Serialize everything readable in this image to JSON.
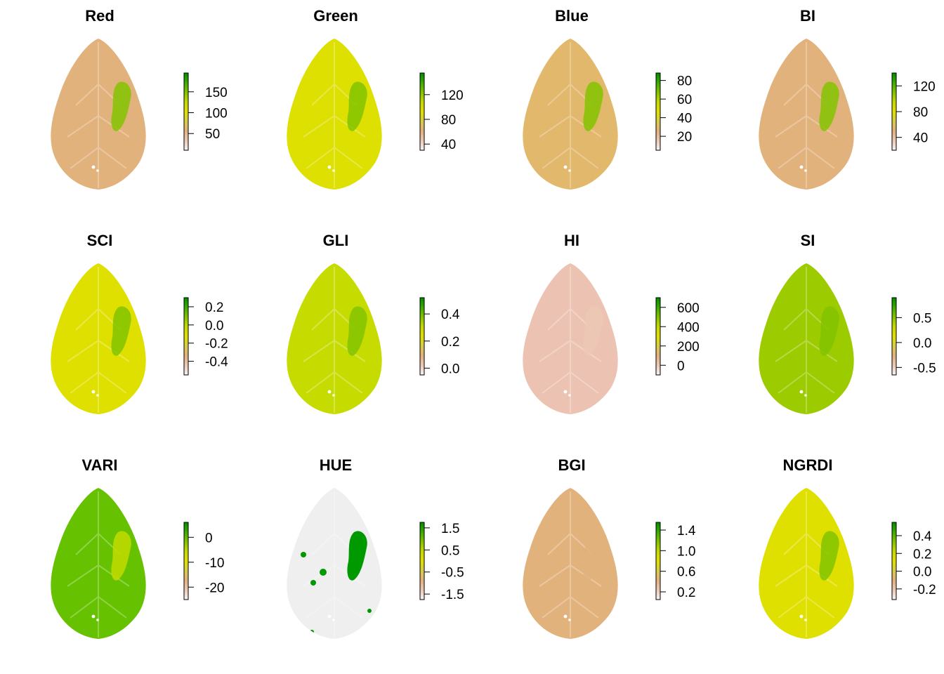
{
  "palette": [
    "#f4f4f4",
    "#ecc8b4",
    "#e2b27c",
    "#d9cc4a",
    "#dfe000",
    "#c2da00",
    "#83c300",
    "#3aab00",
    "#008a00"
  ],
  "chart_data": [
    {
      "type": "heatmap",
      "title": "Red",
      "base": "#e2b27c",
      "patch": [
        0.78,
        0.62,
        0.5
      ],
      "accent": 0.75,
      "ticks": [
        {
          "value": 150,
          "label": "150"
        },
        {
          "value": 100,
          "label": "100"
        },
        {
          "value": 50,
          "label": "50"
        }
      ],
      "range": [
        10,
        195
      ]
    },
    {
      "type": "heatmap",
      "title": "Green",
      "base": "#dde000",
      "patch": [
        0.75,
        0.45,
        0.3
      ],
      "accent": 0.8,
      "ticks": [
        {
          "value": 120,
          "label": "120"
        },
        {
          "value": 80,
          "label": "80"
        },
        {
          "value": 40,
          "label": "40"
        }
      ],
      "range": [
        30,
        155
      ]
    },
    {
      "type": "heatmap",
      "title": "Blue",
      "base": "#e2b86c",
      "patch": [
        0.45,
        0.35,
        0.2
      ],
      "accent": 0.7,
      "ticks": [
        {
          "value": 80,
          "label": "80"
        },
        {
          "value": 60,
          "label": "60"
        },
        {
          "value": 40,
          "label": "40"
        },
        {
          "value": 20,
          "label": "20"
        }
      ],
      "range": [
        5,
        88
      ]
    },
    {
      "type": "heatmap",
      "title": "BI",
      "base": "#e2b27c",
      "patch": [
        0.78,
        0.62,
        0.5
      ],
      "accent": 0.75,
      "ticks": [
        {
          "value": 120,
          "label": "120"
        },
        {
          "value": 80,
          "label": "80"
        },
        {
          "value": 40,
          "label": "40"
        }
      ],
      "range": [
        20,
        140
      ]
    },
    {
      "type": "heatmap",
      "title": "SCI",
      "base": "#dfe000",
      "patch": [
        0.82,
        0.62,
        0.45
      ],
      "accent": 0.8,
      "ticks": [
        {
          "value": 0.2,
          "label": "0.2"
        },
        {
          "value": 0.0,
          "label": "0.0"
        },
        {
          "value": -0.2,
          "label": "-0.2"
        },
        {
          "value": -0.4,
          "label": "-0.4"
        }
      ],
      "range": [
        -0.55,
        0.3
      ]
    },
    {
      "type": "heatmap",
      "title": "GLI",
      "base": "#c6dc00",
      "patch": [
        0.2,
        0.12,
        0.1
      ],
      "accent": 0.75,
      "ticks": [
        {
          "value": 0.4,
          "label": "0.4"
        },
        {
          "value": 0.2,
          "label": "0.2"
        },
        {
          "value": 0.0,
          "label": "0.0"
        }
      ],
      "range": [
        -0.05,
        0.52
      ]
    },
    {
      "type": "heatmap",
      "title": "HI",
      "base": "#ecc3b2",
      "patch": [
        0.12,
        0.1,
        0.12
      ],
      "accent": 0.12,
      "ticks": [
        {
          "value": 600,
          "label": "600"
        },
        {
          "value": 400,
          "label": "400"
        },
        {
          "value": 200,
          "label": "200"
        },
        {
          "value": 0,
          "label": "0"
        }
      ],
      "range": [
        -100,
        700
      ]
    },
    {
      "type": "heatmap",
      "title": "SI",
      "base": "#9ccb00",
      "patch": [
        0.85,
        0.8,
        0.75
      ],
      "accent": 0.7,
      "ticks": [
        {
          "value": 0.5,
          "label": "0.5"
        },
        {
          "value": 0.0,
          "label": "0.0"
        },
        {
          "value": -0.5,
          "label": "-0.5"
        }
      ],
      "range": [
        -0.65,
        0.9
      ]
    },
    {
      "type": "heatmap",
      "title": "VARI",
      "base": "#66c200",
      "patch": [
        0.6,
        0.6,
        0.6
      ],
      "accent": 0.6,
      "ticks": [
        {
          "value": 0,
          "label": "0"
        },
        {
          "value": -10,
          "label": "-10"
        },
        {
          "value": -20,
          "label": "-20"
        }
      ],
      "range": [
        -25,
        6
      ]
    },
    {
      "type": "heatmap",
      "title": "HUE",
      "base": "#efefef",
      "patch": [
        1.0,
        1.0,
        1.0
      ],
      "accent": 1.0,
      "ticks": [
        {
          "value": 1.5,
          "label": "1.5"
        },
        {
          "value": 0.5,
          "label": "0.5"
        },
        {
          "value": -0.5,
          "label": "-0.5"
        },
        {
          "value": -1.5,
          "label": "-1.5"
        }
      ],
      "range": [
        -1.75,
        1.75
      ]
    },
    {
      "type": "heatmap",
      "title": "BGI",
      "base": "#e2b27c",
      "patch": [
        0.1,
        0.12,
        0.1
      ],
      "accent": 0.2,
      "ticks": [
        {
          "value": 1.4,
          "label": "1.4"
        },
        {
          "value": 1.0,
          "label": "1.0"
        },
        {
          "value": 0.6,
          "label": "0.6"
        },
        {
          "value": 0.2,
          "label": "0.2"
        }
      ],
      "range": [
        0.05,
        1.55
      ]
    },
    {
      "type": "heatmap",
      "title": "NGRDI",
      "base": "#dfe000",
      "patch": [
        0.2,
        0.15,
        0.12
      ],
      "accent": 0.75,
      "ticks": [
        {
          "value": 0.4,
          "label": "0.4"
        },
        {
          "value": 0.2,
          "label": "0.2"
        },
        {
          "value": 0.0,
          "label": "0.0"
        },
        {
          "value": -0.2,
          "label": "-0.2"
        }
      ],
      "range": [
        -0.32,
        0.55
      ]
    }
  ]
}
